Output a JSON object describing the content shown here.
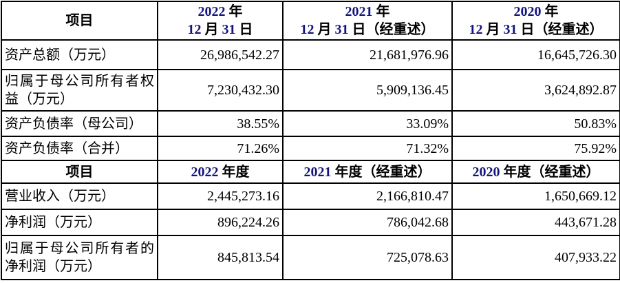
{
  "table": {
    "sections": [
      {
        "header": {
          "item": "项目",
          "col2022": "2022 年\n12 月 31 日",
          "col2021": "2021 年\n12 月 31 日（经重述）",
          "col2020": "2020 年\n12 月 31 日（经重述）"
        },
        "rows": [
          {
            "label": "资产总额（万元）",
            "values": [
              "26,986,542.27",
              "21,681,976.96",
              "16,645,726.30"
            ]
          },
          {
            "label": "归属于母公司所有者权益（万元）",
            "values": [
              "7,230,432.30",
              "5,909,136.45",
              "3,624,892.87"
            ]
          },
          {
            "label": "资产负债率（母公司）",
            "values": [
              "38.55%",
              "33.09%",
              "50.83%"
            ]
          },
          {
            "label": "资产负债率（合并）",
            "values": [
              "71.26%",
              "71.32%",
              "75.92%"
            ]
          }
        ]
      },
      {
        "header": {
          "item": "项目",
          "col2022": "2022 年度",
          "col2021": "2021 年度（经重述）",
          "col2020": "2020 年度（经重述）"
        },
        "rows": [
          {
            "label": "营业收入（万元）",
            "values": [
              "2,445,273.16",
              "2,166,810.47",
              "1,650,669.12"
            ]
          },
          {
            "label": "净利润（万元）",
            "values": [
              "896,224.26",
              "786,042.68",
              "443,671.28"
            ]
          },
          {
            "label": "归属于母公司所有者的净利润（万元）",
            "values": [
              "845,813.54",
              "725,078.63",
              "407,933.22"
            ]
          }
        ]
      }
    ],
    "colors": {
      "text": "#000000",
      "border": "#000000",
      "header_digit_tint": "#14147e",
      "background": "#ffffff"
    }
  }
}
